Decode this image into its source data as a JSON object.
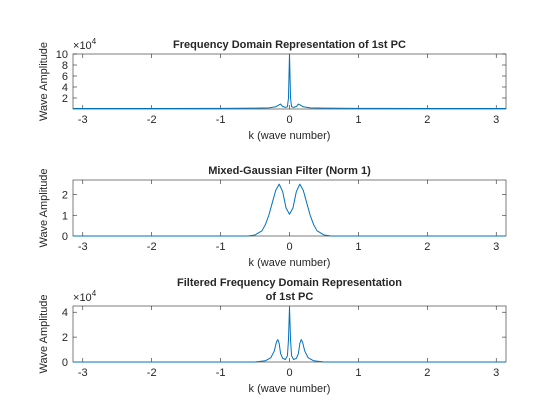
{
  "chart_data": [
    {
      "type": "line",
      "title": "Frequency Domain Representation of 1st PC",
      "xlabel": "k (wave number)",
      "ylabel": "Wave Amplitude",
      "exponent_label": "10",
      "exponent_power": "4",
      "xlim": [
        -3.1416,
        3.1416
      ],
      "ylim": [
        0,
        10
      ],
      "xticks": [
        -3,
        -2,
        -1,
        0,
        1,
        2,
        3
      ],
      "yticks": [
        2,
        4,
        6,
        8,
        10
      ],
      "series": [
        {
          "color": "#0072bd",
          "x": [
            -3.1416,
            -2.0,
            -1.0,
            -0.5,
            -0.3,
            -0.2,
            -0.16,
            -0.13,
            -0.1,
            -0.06,
            -0.03,
            -0.015,
            0,
            0.015,
            0.03,
            0.06,
            0.1,
            0.13,
            0.16,
            0.2,
            0.3,
            0.5,
            1.0,
            2.0,
            3.1416
          ],
          "values": [
            0.08,
            0.1,
            0.12,
            0.15,
            0.2,
            0.4,
            0.7,
            0.9,
            0.45,
            0.3,
            0.4,
            2.0,
            10.0,
            2.0,
            0.4,
            0.3,
            0.45,
            0.9,
            0.7,
            0.4,
            0.2,
            0.15,
            0.12,
            0.1,
            0.08
          ]
        }
      ]
    },
    {
      "type": "line",
      "title": "Mixed-Gaussian Filter (Norm 1)",
      "xlabel": "k (wave number)",
      "ylabel": "Wave Amplitude",
      "xlim": [
        -3.1416,
        3.1416
      ],
      "ylim": [
        0,
        2.7
      ],
      "xticks": [
        -3,
        -2,
        -1,
        0,
        1,
        2,
        3
      ],
      "yticks": [
        0,
        1,
        2
      ],
      "series": [
        {
          "color": "#0072bd",
          "x": [
            -3.1416,
            -0.6,
            -0.5,
            -0.4,
            -0.35,
            -0.3,
            -0.25,
            -0.2,
            -0.15,
            -0.1,
            -0.05,
            0,
            0.05,
            0.1,
            0.15,
            0.2,
            0.25,
            0.3,
            0.35,
            0.4,
            0.5,
            0.6,
            3.1416
          ],
          "values": [
            0,
            0.0,
            0.05,
            0.25,
            0.55,
            1.0,
            1.6,
            2.2,
            2.5,
            2.15,
            1.35,
            1.05,
            1.35,
            2.15,
            2.5,
            2.2,
            1.6,
            1.0,
            0.55,
            0.25,
            0.05,
            0.0,
            0
          ]
        }
      ]
    },
    {
      "type": "line",
      "title": "Filtered Frequency Domain Representation",
      "subtitle": "of 1st PC",
      "xlabel": "k (wave number)",
      "ylabel": "Wave Amplitude",
      "exponent_label": "10",
      "exponent_power": "4",
      "xlim": [
        -3.1416,
        3.1416
      ],
      "ylim": [
        0,
        4.5
      ],
      "xticks": [
        -3,
        -2,
        -1,
        0,
        1,
        2,
        3
      ],
      "yticks": [
        0,
        2,
        4
      ],
      "series": [
        {
          "color": "#0072bd",
          "x": [
            -3.1416,
            -0.5,
            -0.35,
            -0.27,
            -0.22,
            -0.19,
            -0.17,
            -0.15,
            -0.13,
            -0.1,
            -0.06,
            -0.03,
            -0.015,
            0,
            0.015,
            0.03,
            0.06,
            0.1,
            0.13,
            0.15,
            0.17,
            0.19,
            0.22,
            0.27,
            0.35,
            0.5,
            3.1416
          ],
          "values": [
            0,
            0.0,
            0.1,
            0.35,
            0.9,
            1.6,
            1.8,
            1.5,
            0.7,
            0.3,
            0.2,
            0.5,
            1.8,
            4.4,
            1.8,
            0.5,
            0.2,
            0.3,
            0.7,
            1.5,
            1.8,
            1.6,
            0.9,
            0.35,
            0.1,
            0.0,
            0
          ]
        }
      ]
    }
  ]
}
